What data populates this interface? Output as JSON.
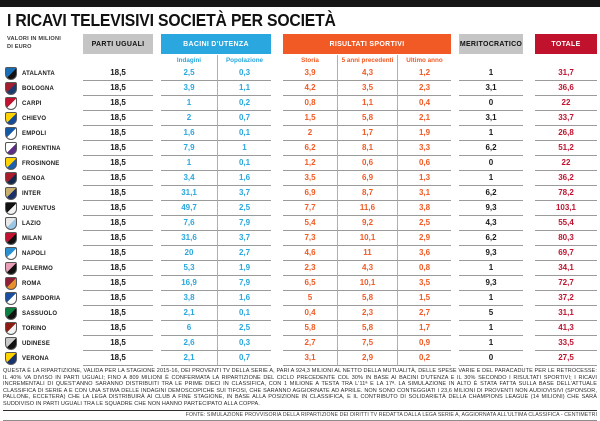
{
  "title": "I RICAVI TELEVISIVI SOCIETÀ PER SOCIETÀ",
  "unit_note": {
    "line1": "VALORI IN MILIONI",
    "line2": "DI EURO"
  },
  "header": {
    "parti_uguali": "PARTI UGUALI",
    "bacini_utenza": "BACINI D'UTENZA",
    "bacini_sub": [
      "Indagini",
      "Popolazione"
    ],
    "risultati_sportivi": "RISULTATI SPORTIVI",
    "risultati_sub": [
      "Storia",
      "5 anni precedenti",
      "Ultimo anno"
    ],
    "meritocratico": "MERITOCRATICO",
    "totale": "TOTALE"
  },
  "colors": {
    "blue": "#29a7de",
    "orange": "#f15a24",
    "red": "#c1122d",
    "gray_pill": "#c5c5c5",
    "line": "#9b9b9b",
    "value_dark": "#1a1a1a",
    "totale_text": "#c1132f"
  },
  "chart_data": {
    "type": "table",
    "title": "I RICAVI TELEVISIVI SOCIETÀ PER SOCIETÀ",
    "unit": "milioni di euro",
    "columns": [
      "Società",
      "Parti uguali",
      "Bacini d'utenza - Indagini",
      "Bacini d'utenza - Popolazione",
      "Risultati sportivi - Storia",
      "Risultati sportivi - 5 anni precedenti",
      "Risultati sportivi - Ultimo anno",
      "Meritocratico",
      "Totale"
    ],
    "rows": [
      {
        "club": "ATALANTA",
        "logo": [
          "#1a6eb5",
          "#111111"
        ],
        "values": [
          "18,5",
          "2,5",
          "0,3",
          "3,9",
          "4,3",
          "1,2",
          "1",
          "31,7"
        ]
      },
      {
        "club": "BOLOGNA",
        "logo": [
          "#a31e2f",
          "#1c3c70"
        ],
        "values": [
          "18,5",
          "3,9",
          "1,1",
          "4,2",
          "3,5",
          "2,3",
          "3,1",
          "36,6"
        ]
      },
      {
        "club": "CARPI",
        "logo": [
          "#c1122f",
          "#ffffff"
        ],
        "values": [
          "18,5",
          "1",
          "0,2",
          "0,8",
          "1,1",
          "0,4",
          "0",
          "22"
        ]
      },
      {
        "club": "CHIEVO",
        "logo": [
          "#ffd200",
          "#134a9b"
        ],
        "values": [
          "18,5",
          "2",
          "0,7",
          "1,5",
          "5,8",
          "2,1",
          "3,1",
          "33,7"
        ]
      },
      {
        "club": "EMPOLI",
        "logo": [
          "#1559a6",
          "#ffffff"
        ],
        "values": [
          "18,5",
          "1,6",
          "0,1",
          "2",
          "1,7",
          "1,9",
          "1",
          "26,8"
        ]
      },
      {
        "club": "FIORENTINA",
        "logo": [
          "#ffffff",
          "#5c2d87"
        ],
        "values": [
          "18,5",
          "7,9",
          "1",
          "6,2",
          "8,1",
          "3,3",
          "6,2",
          "51,2"
        ]
      },
      {
        "club": "FROSINONE",
        "logo": [
          "#ffd200",
          "#1a5fb0"
        ],
        "values": [
          "18,5",
          "1",
          "0,1",
          "1,2",
          "0,6",
          "0,6",
          "0",
          "22"
        ]
      },
      {
        "club": "GENOA",
        "logo": [
          "#a81c2b",
          "#12294d"
        ],
        "values": [
          "18,5",
          "3,4",
          "1,6",
          "3,5",
          "6,9",
          "1,3",
          "1",
          "36,2"
        ]
      },
      {
        "club": "INTER",
        "logo": [
          "#c8b06a",
          "#1b2f6b"
        ],
        "values": [
          "18,5",
          "31,1",
          "3,7",
          "6,9",
          "8,7",
          "3,1",
          "6,2",
          "78,2"
        ]
      },
      {
        "club": "JUVENTUS",
        "logo": [
          "#111111",
          "#f2f2f2"
        ],
        "values": [
          "18,5",
          "49,7",
          "2,5",
          "7,7",
          "11,6",
          "3,8",
          "9,3",
          "103,1"
        ]
      },
      {
        "club": "LAZIO",
        "logo": [
          "#e8e8e8",
          "#9cc7e4"
        ],
        "values": [
          "18,5",
          "7,6",
          "7,9",
          "5,4",
          "9,2",
          "2,5",
          "4,3",
          "55,4"
        ]
      },
      {
        "club": "MILAN",
        "logo": [
          "#c1122f",
          "#111111"
        ],
        "values": [
          "18,5",
          "31,6",
          "3,7",
          "7,3",
          "10,1",
          "2,9",
          "6,2",
          "80,3"
        ]
      },
      {
        "club": "NAPOLI",
        "logo": [
          "#2b8fd0",
          "#ffffff"
        ],
        "values": [
          "18,5",
          "20",
          "2,7",
          "4,6",
          "11",
          "3,6",
          "9,3",
          "69,7"
        ]
      },
      {
        "club": "PALERMO",
        "logo": [
          "#e9a0b7",
          "#111111"
        ],
        "values": [
          "18,5",
          "5,3",
          "1,9",
          "2,3",
          "4,3",
          "0,8",
          "1",
          "34,1"
        ]
      },
      {
        "club": "ROMA",
        "logo": [
          "#8e2038",
          "#e8912c"
        ],
        "values": [
          "18,5",
          "16,9",
          "7,9",
          "6,5",
          "10,1",
          "3,5",
          "9,3",
          "72,7"
        ]
      },
      {
        "club": "SAMPDORIA",
        "logo": [
          "#1b4f9e",
          "#ffffff"
        ],
        "values": [
          "18,5",
          "3,8",
          "1,6",
          "5",
          "5,8",
          "1,5",
          "1",
          "37,2"
        ]
      },
      {
        "club": "SASSUOLO",
        "logo": [
          "#0c8040",
          "#111111"
        ],
        "values": [
          "18,5",
          "2,1",
          "0,1",
          "0,4",
          "2,3",
          "2,7",
          "5",
          "31,1"
        ]
      },
      {
        "club": "TORINO",
        "logo": [
          "#8c1b12",
          "#f2f2f2"
        ],
        "values": [
          "18,5",
          "6",
          "2,5",
          "5,8",
          "5,8",
          "1,7",
          "1",
          "41,3"
        ]
      },
      {
        "club": "UDINESE",
        "logo": [
          "#c9c9c9",
          "#111111"
        ],
        "values": [
          "18,5",
          "2,6",
          "0,3",
          "2,7",
          "7,5",
          "0,9",
          "1",
          "33,5"
        ]
      },
      {
        "club": "VERONA",
        "logo": [
          "#ffd200",
          "#17326e"
        ],
        "values": [
          "18,5",
          "2,1",
          "0,7",
          "3,1",
          "2,9",
          "0,2",
          "0",
          "27,5"
        ]
      }
    ]
  },
  "footnote": "QUESTA È LA RIPARTIZIONE, VALIDA PER LA STAGIONE 2015-16, DEI PROVENTI TV DELLA SERIE A, PARI A 924,3 MILIONI AL NETTO DELLA MUTUALITÀ, DELLE SPESE VARIE E DEL PARACADUTE PER LE RETROCESSE: IL 40% VA DIVISO IN PARTI UGUALI; FINO A 809 MILIONI È CONFERMATA LA RIPARTIZIONE DEL CICLO PRECEDENTE COL 30% IN BASE AI BACINI D'UTENZA E IL 30% SECONDO I RISULTATI SPORTIVI; I RICAVI INCREMENTALI DI QUEST'ANNO SARANNO DISTRIBUITI TRA LE PRIME DIECI IN CLASSIFICA, CON 1 MILIONE A TESTA TRA L'11ª E LA 17ª. LA SIMULAZIONE IN ALTO È STATA FATTA SULLA BASE DELL'ATTUALE CLASSIFICA DI SERIE A E CON UNA STIMA DELLE INDAGINI DEMOSCOPICHE SUI TIFOSI, CHE SARANNO AGGIORNATE AD APRILE. NON SONO CONTEGGIATI I 23,6 MILIONI DI PROVENTI NON AUDIOVISIVI (SPONSOR, PALLONE, ECCETERA) CHE LA LEGA DISTRIBUIRÀ AI CLUB A FINE STAGIONE, IN BASE ALLA POSIZIONE IN CLASSIFICA, E IL CONTRIBUTO DI SOLIDARIETÀ DELLA CHAMPIONS LEAGUE (14 MILIONI) CHE SARÀ SUDDIVISO IN PARTI UGUALI TRA LE SQUADRE CHE NON HANNO PARTECIPATO ALLA COPPA.",
  "fonte": "FONTE: SIMULAZIONE PROVVISORIA DELLA RIPARTIZIONE DEI DIRITTI TV REDATTA DALLA LEGA SERIE A, AGGIORNATA ALL'ULTIMA CLASSIFICA - CENTIMETRI"
}
